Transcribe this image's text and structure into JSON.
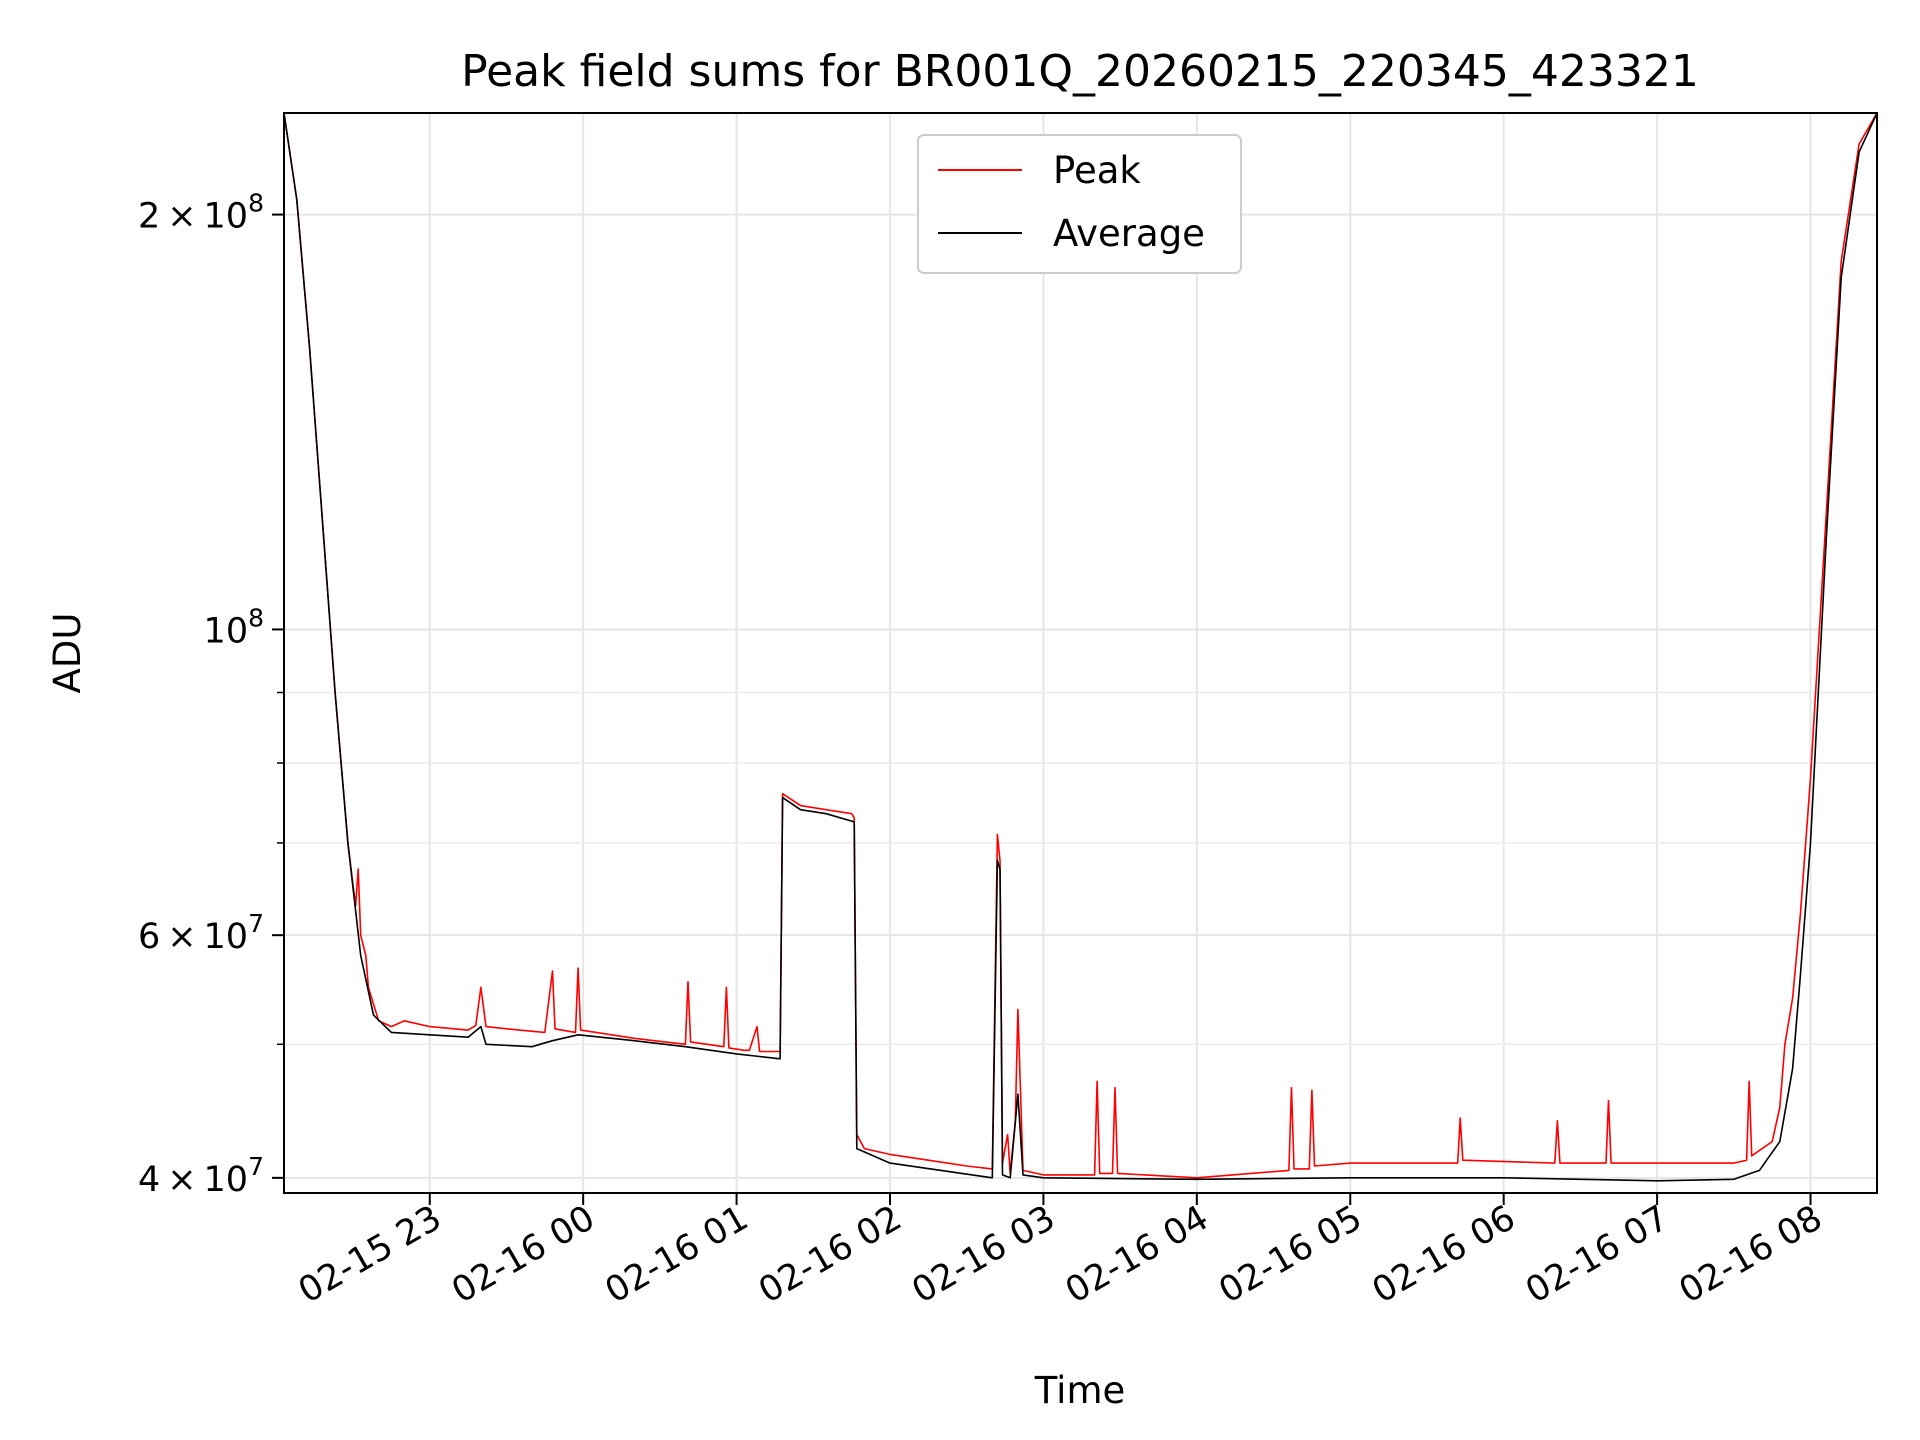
{
  "chart_data": {
    "type": "line",
    "title": "Peak field sums for BR001Q_20260215_220345_423321",
    "xlabel": "Time",
    "ylabel": "ADU",
    "xlim": [
      "2026-02-15 22:03",
      "2026-02-16 08:26"
    ],
    "ylim": [
      39000000,
      237000000
    ],
    "yscale": "log",
    "grid": true,
    "legend": "upper center",
    "x_ticks": [
      {
        "t": "2026-02-15 23:00",
        "label": "02-15 23"
      },
      {
        "t": "2026-02-16 00:00",
        "label": "02-16 00"
      },
      {
        "t": "2026-02-16 01:00",
        "label": "02-16 01"
      },
      {
        "t": "2026-02-16 02:00",
        "label": "02-16 02"
      },
      {
        "t": "2026-02-16 03:00",
        "label": "02-16 03"
      },
      {
        "t": "2026-02-16 04:00",
        "label": "02-16 04"
      },
      {
        "t": "2026-02-16 05:00",
        "label": "02-16 05"
      },
      {
        "t": "2026-02-16 06:00",
        "label": "02-16 06"
      },
      {
        "t": "2026-02-16 07:00",
        "label": "02-16 07"
      },
      {
        "t": "2026-02-16 08:00",
        "label": "02-16 08"
      }
    ],
    "y_ticks_major": [
      {
        "value": 40000000,
        "base": "4",
        "exp": "7"
      },
      {
        "value": 60000000,
        "base": "6",
        "exp": "7"
      },
      {
        "value": 100000000,
        "base": "",
        "exp": "8"
      },
      {
        "value": 200000000,
        "base": "2",
        "exp": "8"
      }
    ],
    "y_ticks_minor": [
      50000000,
      70000000,
      80000000,
      90000000,
      300000000
    ],
    "series": [
      {
        "name": "Peak",
        "color": "#ff0000",
        "points": [
          [
            "2026-02-15 22:03",
            237000000
          ],
          [
            "2026-02-15 22:08",
            205000000
          ],
          [
            "2026-02-15 22:13",
            160000000
          ],
          [
            "2026-02-15 22:18",
            120000000
          ],
          [
            "2026-02-15 22:23",
            90000000
          ],
          [
            "2026-02-15 22:28",
            70000000
          ],
          [
            "2026-02-15 22:31",
            63000000
          ],
          [
            "2026-02-15 22:32",
            67000000
          ],
          [
            "2026-02-15 22:33",
            60000000
          ],
          [
            "2026-02-15 22:35",
            58000000
          ],
          [
            "2026-02-15 22:36",
            55000000
          ],
          [
            "2026-02-15 22:40",
            52000000
          ],
          [
            "2026-02-15 22:45",
            51500000
          ],
          [
            "2026-02-15 22:50",
            52000000
          ],
          [
            "2026-02-15 23:00",
            51500000
          ],
          [
            "2026-02-15 23:15",
            51200000
          ],
          [
            "2026-02-15 23:18",
            51600000
          ],
          [
            "2026-02-15 23:20",
            55000000
          ],
          [
            "2026-02-15 23:22",
            51500000
          ],
          [
            "2026-02-15 23:35",
            51200000
          ],
          [
            "2026-02-15 23:45",
            51000000
          ],
          [
            "2026-02-15 23:48",
            56500000
          ],
          [
            "2026-02-15 23:49",
            51300000
          ],
          [
            "2026-02-15 23:57",
            51000000
          ],
          [
            "2026-02-15 23:58",
            56800000
          ],
          [
            "2026-02-15 23:59",
            51200000
          ],
          [
            "2026-02-16 00:20",
            50500000
          ],
          [
            "2026-02-16 00:40",
            50000000
          ],
          [
            "2026-02-16 00:41",
            55500000
          ],
          [
            "2026-02-16 00:42",
            50200000
          ],
          [
            "2026-02-16 00:55",
            49800000
          ],
          [
            "2026-02-16 00:56",
            55000000
          ],
          [
            "2026-02-16 00:57",
            49700000
          ],
          [
            "2026-02-16 01:03",
            49500000
          ],
          [
            "2026-02-16 01:05",
            49500000
          ],
          [
            "2026-02-16 01:08",
            51500000
          ],
          [
            "2026-02-16 01:09",
            49400000
          ],
          [
            "2026-02-16 01:17",
            49400000
          ],
          [
            "2026-02-16 01:18",
            76000000
          ],
          [
            "2026-02-16 01:25",
            74500000
          ],
          [
            "2026-02-16 01:35",
            74000000
          ],
          [
            "2026-02-16 01:45",
            73500000
          ],
          [
            "2026-02-16 01:46",
            73000000
          ],
          [
            "2026-02-16 01:47",
            43000000
          ],
          [
            "2026-02-16 01:50",
            42000000
          ],
          [
            "2026-02-16 02:00",
            41600000
          ],
          [
            "2026-02-16 02:15",
            41200000
          ],
          [
            "2026-02-16 02:30",
            40800000
          ],
          [
            "2026-02-16 02:40",
            40600000
          ],
          [
            "2026-02-16 02:42",
            71000000
          ],
          [
            "2026-02-16 02:43",
            68000000
          ],
          [
            "2026-02-16 02:44",
            41000000
          ],
          [
            "2026-02-16 02:46",
            43000000
          ],
          [
            "2026-02-16 02:47",
            40300000
          ],
          [
            "2026-02-16 02:49",
            44000000
          ],
          [
            "2026-02-16 02:50",
            53000000
          ],
          [
            "2026-02-16 02:52",
            40500000
          ],
          [
            "2026-02-16 03:00",
            40200000
          ],
          [
            "2026-02-16 03:20",
            40200000
          ],
          [
            "2026-02-16 03:21",
            47000000
          ],
          [
            "2026-02-16 03:22",
            40300000
          ],
          [
            "2026-02-16 03:27",
            40300000
          ],
          [
            "2026-02-16 03:28",
            46500000
          ],
          [
            "2026-02-16 03:29",
            40300000
          ],
          [
            "2026-02-16 04:00",
            40000000
          ],
          [
            "2026-02-16 04:36",
            40500000
          ],
          [
            "2026-02-16 04:37",
            46500000
          ],
          [
            "2026-02-16 04:38",
            40600000
          ],
          [
            "2026-02-16 04:44",
            40600000
          ],
          [
            "2026-02-16 04:45",
            46300000
          ],
          [
            "2026-02-16 04:46",
            40800000
          ],
          [
            "2026-02-16 05:00",
            41000000
          ],
          [
            "2026-02-16 05:30",
            41000000
          ],
          [
            "2026-02-16 05:42",
            41000000
          ],
          [
            "2026-02-16 05:43",
            44200000
          ],
          [
            "2026-02-16 05:44",
            41200000
          ],
          [
            "2026-02-16 06:20",
            41000000
          ],
          [
            "2026-02-16 06:21",
            44000000
          ],
          [
            "2026-02-16 06:22",
            41000000
          ],
          [
            "2026-02-16 06:40",
            41000000
          ],
          [
            "2026-02-16 06:41",
            45500000
          ],
          [
            "2026-02-16 06:42",
            41000000
          ],
          [
            "2026-02-16 07:30",
            41000000
          ],
          [
            "2026-02-16 07:35",
            41200000
          ],
          [
            "2026-02-16 07:36",
            47000000
          ],
          [
            "2026-02-16 07:37",
            41500000
          ],
          [
            "2026-02-16 07:45",
            42500000
          ],
          [
            "2026-02-16 07:48",
            45000000
          ],
          [
            "2026-02-16 07:50",
            50000000
          ],
          [
            "2026-02-16 07:53",
            54000000
          ],
          [
            "2026-02-16 07:56",
            62000000
          ],
          [
            "2026-02-16 08:00",
            78000000
          ],
          [
            "2026-02-16 08:06",
            120000000
          ],
          [
            "2026-02-16 08:12",
            185000000
          ],
          [
            "2026-02-16 08:19",
            225000000
          ],
          [
            "2026-02-16 08:26",
            237000000
          ]
        ]
      },
      {
        "name": "Average",
        "color": "#000000",
        "points": [
          [
            "2026-02-15 22:03",
            237000000
          ],
          [
            "2026-02-15 22:08",
            205000000
          ],
          [
            "2026-02-15 22:13",
            160000000
          ],
          [
            "2026-02-15 22:18",
            120000000
          ],
          [
            "2026-02-15 22:23",
            90000000
          ],
          [
            "2026-02-15 22:28",
            70000000
          ],
          [
            "2026-02-15 22:33",
            58000000
          ],
          [
            "2026-02-15 22:38",
            52500000
          ],
          [
            "2026-02-15 22:45",
            51000000
          ],
          [
            "2026-02-15 23:00",
            50800000
          ],
          [
            "2026-02-15 23:15",
            50600000
          ],
          [
            "2026-02-15 23:20",
            51500000
          ],
          [
            "2026-02-15 23:22",
            50000000
          ],
          [
            "2026-02-15 23:40",
            49800000
          ],
          [
            "2026-02-15 23:48",
            50300000
          ],
          [
            "2026-02-15 23:58",
            50800000
          ],
          [
            "2026-02-16 00:20",
            50300000
          ],
          [
            "2026-02-16 00:40",
            49800000
          ],
          [
            "2026-02-16 01:00",
            49200000
          ],
          [
            "2026-02-16 01:17",
            48800000
          ],
          [
            "2026-02-16 01:18",
            75500000
          ],
          [
            "2026-02-16 01:25",
            74000000
          ],
          [
            "2026-02-16 01:35",
            73500000
          ],
          [
            "2026-02-16 01:46",
            72500000
          ],
          [
            "2026-02-16 01:47",
            42000000
          ],
          [
            "2026-02-16 02:00",
            41000000
          ],
          [
            "2026-02-16 02:20",
            40500000
          ],
          [
            "2026-02-16 02:40",
            40000000
          ],
          [
            "2026-02-16 02:42",
            68000000
          ],
          [
            "2026-02-16 02:43",
            67000000
          ],
          [
            "2026-02-16 02:44",
            40200000
          ],
          [
            "2026-02-16 02:47",
            40000000
          ],
          [
            "2026-02-16 02:50",
            46000000
          ],
          [
            "2026-02-16 02:52",
            40200000
          ],
          [
            "2026-02-16 03:00",
            40000000
          ],
          [
            "2026-02-16 04:00",
            39900000
          ],
          [
            "2026-02-16 05:00",
            40000000
          ],
          [
            "2026-02-16 06:00",
            40000000
          ],
          [
            "2026-02-16 07:00",
            39800000
          ],
          [
            "2026-02-16 07:30",
            39900000
          ],
          [
            "2026-02-16 07:40",
            40500000
          ],
          [
            "2026-02-16 07:48",
            42500000
          ],
          [
            "2026-02-16 07:53",
            48000000
          ],
          [
            "2026-02-16 07:56",
            56000000
          ],
          [
            "2026-02-16 08:00",
            70000000
          ],
          [
            "2026-02-16 08:06",
            115000000
          ],
          [
            "2026-02-16 08:12",
            180000000
          ],
          [
            "2026-02-16 08:19",
            222000000
          ],
          [
            "2026-02-16 08:26",
            237000000
          ]
        ]
      }
    ]
  }
}
